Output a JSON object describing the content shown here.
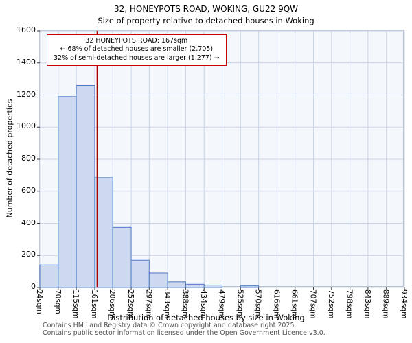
{
  "chart_data": {
    "type": "bar",
    "title": "32, HONEYPOTS ROAD, WOKING, GU22 9QW",
    "subtitle": "Size of property relative to detached houses in Woking",
    "xlabel": "Distribution of detached houses by size in Woking",
    "ylabel": "Number of detached properties",
    "xlim": [
      24,
      934
    ],
    "ylim": [
      0,
      1600
    ],
    "y_step": 200,
    "grid": true,
    "legend": "none",
    "y_ticks": [
      0,
      200,
      400,
      600,
      800,
      1000,
      1200,
      1400,
      1600
    ],
    "bin_edges": [
      24,
      70,
      115,
      161,
      206,
      252,
      297,
      343,
      388,
      434,
      479,
      525,
      570,
      616,
      661,
      707,
      752,
      798,
      843,
      889,
      934
    ],
    "x_tick_labels": [
      "24sqm",
      "70sqm",
      "115sqm",
      "161sqm",
      "206sqm",
      "252sqm",
      "297sqm",
      "343sqm",
      "388sqm",
      "434sqm",
      "479sqm",
      "525sqm",
      "570sqm",
      "616sqm",
      "661sqm",
      "707sqm",
      "752sqm",
      "798sqm",
      "843sqm",
      "889sqm",
      "934sqm"
    ],
    "values": [
      140,
      1190,
      1260,
      685,
      375,
      170,
      90,
      35,
      20,
      15,
      0,
      10,
      0,
      0,
      0,
      0,
      0,
      0,
      0,
      0
    ],
    "marker": {
      "value": 167,
      "label": "32 HONEYPOTS ROAD: 167sqm"
    },
    "annotation_lines": [
      "32 HONEYPOTS ROAD: 167sqm",
      "← 68% of detached houses are smaller (2,705)",
      "32% of semi-detached houses are larger (1,277) →"
    ],
    "colors": {
      "bar_fill": "#ccd9f1",
      "bar_edge": "#4d79c0",
      "marker": "#aa0000",
      "grid": "#c9d4e6",
      "plot_bg": "#f4f7fc",
      "annotation_border": "#cc0000",
      "tick": "#333333"
    }
  },
  "footer": {
    "line1": "Contains HM Land Registry data © Crown copyright and database right 2025.",
    "line2": "Contains public sector information licensed under the Open Government Licence v3.0."
  }
}
